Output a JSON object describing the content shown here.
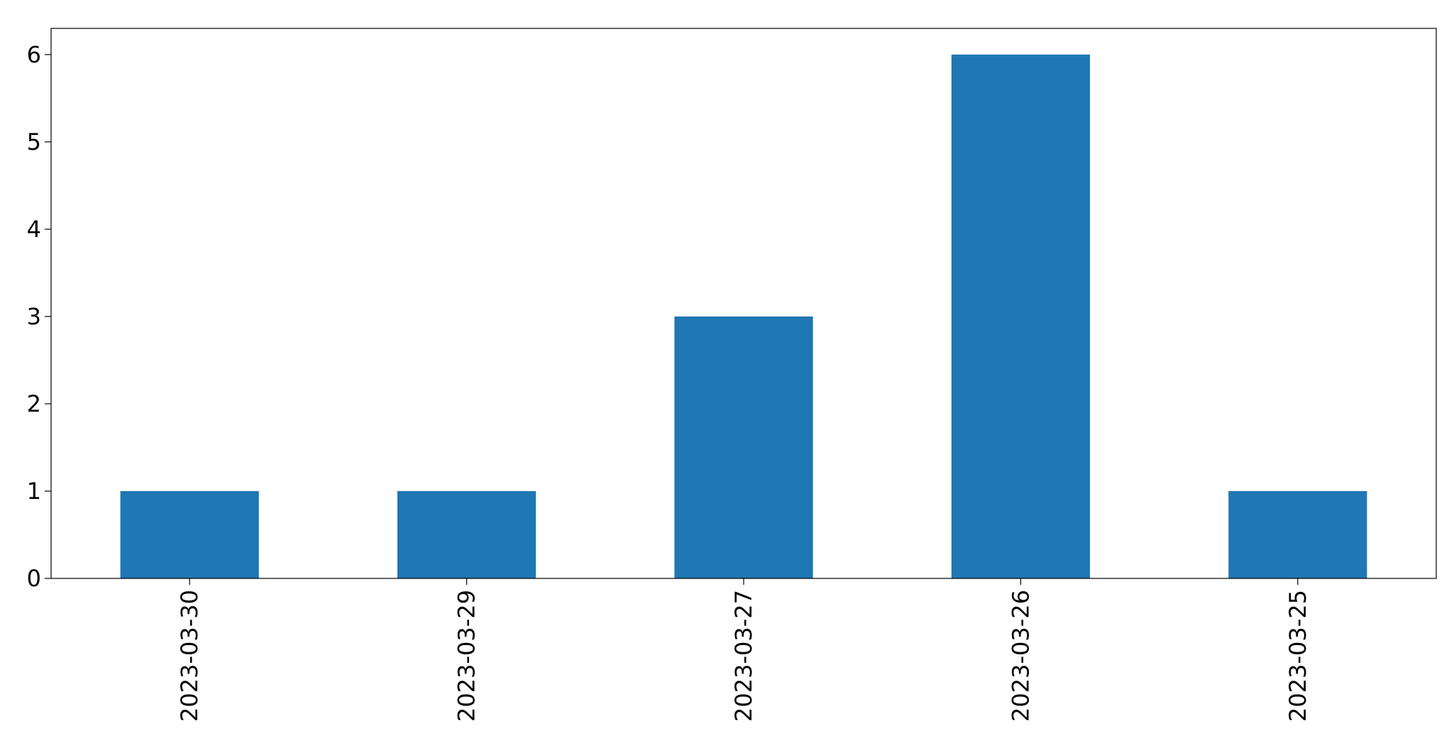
{
  "chart_data": {
    "type": "bar",
    "categories": [
      "2023-03-30",
      "2023-03-29",
      "2023-03-27",
      "2023-03-26",
      "2023-03-25"
    ],
    "values": [
      1,
      1,
      3,
      6,
      1
    ],
    "yticks": [
      "0",
      "1",
      "2",
      "3",
      "4",
      "5",
      "6"
    ],
    "ylim": [
      0,
      6.3
    ],
    "grid": false,
    "bar_color": "#1f77b4",
    "title": "",
    "xlabel": "",
    "ylabel": ""
  }
}
